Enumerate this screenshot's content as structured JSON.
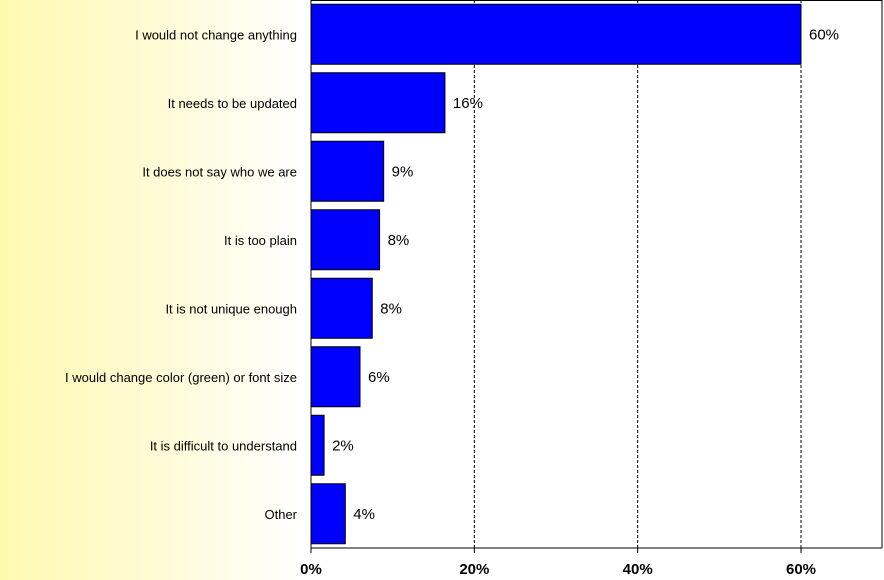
{
  "chart_data": {
    "type": "bar",
    "orientation": "horizontal",
    "title": "",
    "xlabel": "",
    "ylabel": "",
    "categories": [
      "I would not change anything",
      "It needs to be updated",
      "It does not say who we are",
      "It is too plain",
      "It is not unique enough",
      "I would change color (green) or font size",
      "It is difficult to understand",
      "Other"
    ],
    "values": [
      60,
      16.4,
      8.9,
      8.4,
      7.5,
      6.0,
      1.6,
      4.2
    ],
    "value_labels": [
      "60%",
      "16%",
      "9%",
      "8%",
      "8%",
      "6%",
      "2%",
      "4%"
    ],
    "xlim": [
      0,
      70
    ],
    "x_ticks": [
      0,
      20,
      40,
      60
    ],
    "x_tick_labels": [
      "0%",
      "20%",
      "40%",
      "60%"
    ],
    "grid": "vertical dashed",
    "legend": "none"
  },
  "colors": {
    "bar": "#0000ff",
    "bar_outline": "#000000",
    "grid": "#000000",
    "plot_background": "#ffffff"
  }
}
